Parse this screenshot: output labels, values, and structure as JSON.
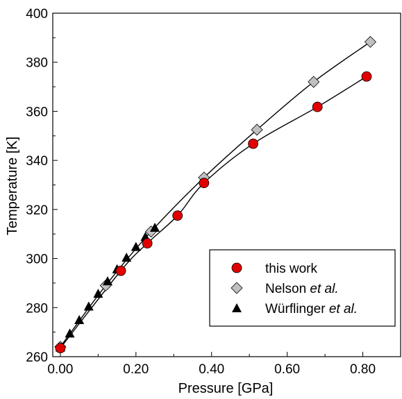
{
  "chart_data": {
    "type": "scatter",
    "xlabel": "Pressure [GPa]",
    "ylabel": "Temperature [K]",
    "xlim": [
      -0.02,
      0.9
    ],
    "ylim": [
      260,
      400
    ],
    "xticks": [
      "0.00",
      "0.20",
      "0.40",
      "0.60",
      "0.80"
    ],
    "yticks": [
      "260",
      "280",
      "300",
      "320",
      "340",
      "360",
      "380",
      "400"
    ],
    "legend_position": "bottom-right",
    "grid": false,
    "series": [
      {
        "name": "this work",
        "marker": "circle",
        "color": "#e00000",
        "points": [
          [
            0.0,
            263.5
          ],
          [
            0.16,
            295.0
          ],
          [
            0.23,
            306.2
          ],
          [
            0.31,
            317.5
          ],
          [
            0.38,
            330.8
          ],
          [
            0.51,
            346.8
          ],
          [
            0.68,
            361.8
          ],
          [
            0.81,
            374.2
          ]
        ]
      },
      {
        "name": "Nelson et al.",
        "marker": "diamond",
        "color": "#c0c0c0",
        "points": [
          [
            0.0,
            264.0
          ],
          [
            0.12,
            289.0
          ],
          [
            0.24,
            311.0
          ],
          [
            0.38,
            333.0
          ],
          [
            0.52,
            352.5
          ],
          [
            0.67,
            372.0
          ],
          [
            0.82,
            388.3
          ]
        ]
      },
      {
        "name": "Würflinger et al.",
        "marker": "triangle",
        "color": "#000000",
        "points": [
          [
            0.0,
            263.8
          ],
          [
            0.025,
            269.5
          ],
          [
            0.05,
            275.0
          ],
          [
            0.075,
            280.5
          ],
          [
            0.1,
            285.7
          ],
          [
            0.125,
            290.8
          ],
          [
            0.15,
            295.7
          ],
          [
            0.175,
            300.4
          ],
          [
            0.2,
            304.8
          ],
          [
            0.225,
            308.9
          ],
          [
            0.25,
            312.6
          ]
        ]
      }
    ]
  },
  "legend": {
    "entries": [
      {
        "label": "this work",
        "italic": ""
      },
      {
        "label": "Nelson ",
        "italic": "et al."
      },
      {
        "label": "Würflinger ",
        "italic": "et al."
      }
    ]
  }
}
